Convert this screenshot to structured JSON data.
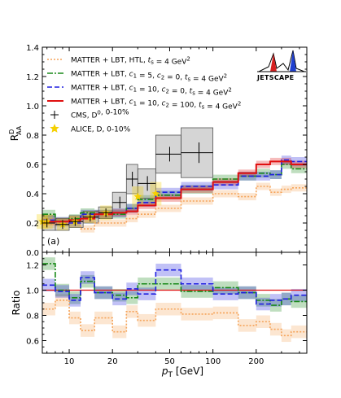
{
  "figure": {
    "panel_label": "(a)",
    "logo_text": "JETSCAPE",
    "colors": {
      "matter_htl": "#f5a45a",
      "c5": "#1a8a1a",
      "c10_0": "#1f1fe0",
      "c10_100": "#e01010",
      "cms": "#000000",
      "alice": "#f5d000",
      "cms_box": "#888888"
    }
  },
  "chart_data": [
    {
      "type": "line",
      "panel": "top",
      "ylabel": "R_AA^D",
      "xlabel": "",
      "xscale": "log",
      "xlim": [
        6.5,
        450
      ],
      "ylim": [
        0.0,
        1.4
      ],
      "yticks": [
        "0.0",
        "0.2",
        "0.4",
        "0.6",
        "0.8",
        "1.0",
        "1.2",
        "1.4"
      ],
      "x_edges": [
        6.5,
        8,
        10,
        12,
        15,
        20,
        25,
        30,
        40,
        60,
        100,
        150,
        200,
        250,
        300,
        350,
        450
      ],
      "legend": [
        {
          "key": "matter_htl",
          "label": "MATTER + LBT,  HTL,  t_s = 4 GeV^2",
          "style": "dotted"
        },
        {
          "key": "c5",
          "label": "MATTER + LBT,  c1 = 5, c2 = 0,  t_s = 4 GeV^2",
          "style": "dashdot"
        },
        {
          "key": "c10_0",
          "label": "MATTER + LBT,  c1 = 10, c2 = 0,  t_s = 4 GeV^2",
          "style": "dashed"
        },
        {
          "key": "c10_100",
          "label": "MATTER + LBT,  c1 = 10, c2 = 100,  t_s = 4 GeV^2",
          "style": "solid"
        },
        {
          "key": "cms",
          "label": "CMS, D^0, 0-10%",
          "style": "marker-plus"
        },
        {
          "key": "alice",
          "label": "ALICE, D, 0-10%",
          "style": "marker-star"
        }
      ],
      "series": [
        {
          "key": "matter_htl",
          "values": [
            0.19,
            0.2,
            0.2,
            0.16,
            0.2,
            0.2,
            0.23,
            0.26,
            0.3,
            0.35,
            0.4,
            0.38,
            0.45,
            0.41,
            0.43,
            0.44
          ],
          "band": 0.025
        },
        {
          "key": "c5",
          "values": [
            0.26,
            0.21,
            0.23,
            0.27,
            0.26,
            0.26,
            0.3,
            0.36,
            0.39,
            0.43,
            0.5,
            0.52,
            0.54,
            0.53,
            0.6,
            0.57
          ],
          "band": 0.03
        },
        {
          "key": "c10_0",
          "values": [
            0.22,
            0.21,
            0.2,
            0.26,
            0.26,
            0.27,
            0.3,
            0.34,
            0.41,
            0.45,
            0.46,
            0.52,
            0.52,
            0.53,
            0.63,
            0.62
          ],
          "band": 0.03
        },
        {
          "key": "c10_100",
          "values": [
            0.21,
            0.21,
            0.22,
            0.23,
            0.26,
            0.27,
            0.28,
            0.32,
            0.37,
            0.43,
            0.48,
            0.54,
            0.6,
            0.62,
            0.62,
            0.6
          ],
          "band": 0.025
        }
      ],
      "cms_points": [
        {
          "x": 7,
          "y": 0.2,
          "xerr": [
            6.5,
            8
          ],
          "yerr": 0.03,
          "sys": 0.05
        },
        {
          "x": 9,
          "y": 0.19,
          "xerr": [
            8,
            10
          ],
          "yerr": 0.03,
          "sys": 0.04
        },
        {
          "x": 11,
          "y": 0.21,
          "xerr": [
            10,
            12.5
          ],
          "yerr": 0.03,
          "sys": 0.04
        },
        {
          "x": 14,
          "y": 0.24,
          "xerr": [
            12.5,
            16
          ],
          "yerr": 0.03,
          "sys": 0.04
        },
        {
          "x": 18,
          "y": 0.27,
          "xerr": [
            16,
            20
          ],
          "yerr": 0.03,
          "sys": 0.04
        },
        {
          "x": 22.5,
          "y": 0.34,
          "xerr": [
            20,
            25
          ],
          "yerr": 0.04,
          "sys": 0.07
        },
        {
          "x": 27.5,
          "y": 0.5,
          "xerr": [
            25,
            30
          ],
          "yerr": 0.05,
          "sys": 0.1
        },
        {
          "x": 35,
          "y": 0.47,
          "xerr": [
            30,
            40
          ],
          "yerr": 0.05,
          "sys": 0.1
        },
        {
          "x": 50,
          "y": 0.67,
          "xerr": [
            40,
            60
          ],
          "yerr": 0.05,
          "sys": 0.13
        },
        {
          "x": 80,
          "y": 0.68,
          "xerr": [
            60,
            100
          ],
          "yerr": 0.07,
          "sys": 0.17
        }
      ],
      "alice_points": [
        {
          "x": 6.5,
          "y": 0.21,
          "sys": 0.05
        },
        {
          "x": 7,
          "y": 0.21,
          "sys": 0.05
        },
        {
          "x": 9,
          "y": 0.19,
          "sys": 0.04
        },
        {
          "x": 11,
          "y": 0.21,
          "sys": 0.04
        },
        {
          "x": 14,
          "y": 0.24,
          "sys": 0.04
        },
        {
          "x": 18,
          "y": 0.27,
          "sys": 0.05
        },
        {
          "x": 30,
          "y": 0.38,
          "sys": 0.07
        },
        {
          "x": 40,
          "y": 0.4,
          "sys": 0.08
        }
      ]
    },
    {
      "type": "line",
      "panel": "bottom",
      "ylabel": "Ratio",
      "xlabel": "p_T [GeV]",
      "xscale": "log",
      "xlim": [
        6.5,
        450
      ],
      "ylim": [
        0.5,
        1.3
      ],
      "yticks": [
        "0.6",
        "0.8",
        "1.0",
        "1.2"
      ],
      "xticks": [
        "10",
        "20",
        "50",
        "100",
        "200"
      ],
      "xtick_values": [
        10,
        20,
        50,
        100,
        200
      ],
      "reference": 1.0,
      "series": [
        {
          "key": "matter_htl",
          "values": [
            0.85,
            0.92,
            0.78,
            0.68,
            0.78,
            0.67,
            0.83,
            0.76,
            0.85,
            0.81,
            0.82,
            0.72,
            0.75,
            0.69,
            0.64,
            0.67
          ],
          "band": 0.05
        },
        {
          "key": "c5",
          "values": [
            1.21,
            1.0,
            0.94,
            1.07,
            0.98,
            0.96,
            0.94,
            1.05,
            1.05,
            0.99,
            1.02,
            0.98,
            0.92,
            0.88,
            0.93,
            0.91
          ],
          "band": 0.05
        },
        {
          "key": "c10_0",
          "values": [
            1.04,
            0.99,
            0.92,
            1.1,
            0.98,
            0.93,
            1.01,
            0.97,
            1.16,
            1.05,
            0.97,
            0.98,
            0.89,
            0.92,
            0.93,
            0.96
          ],
          "band": 0.05
        }
      ]
    }
  ]
}
